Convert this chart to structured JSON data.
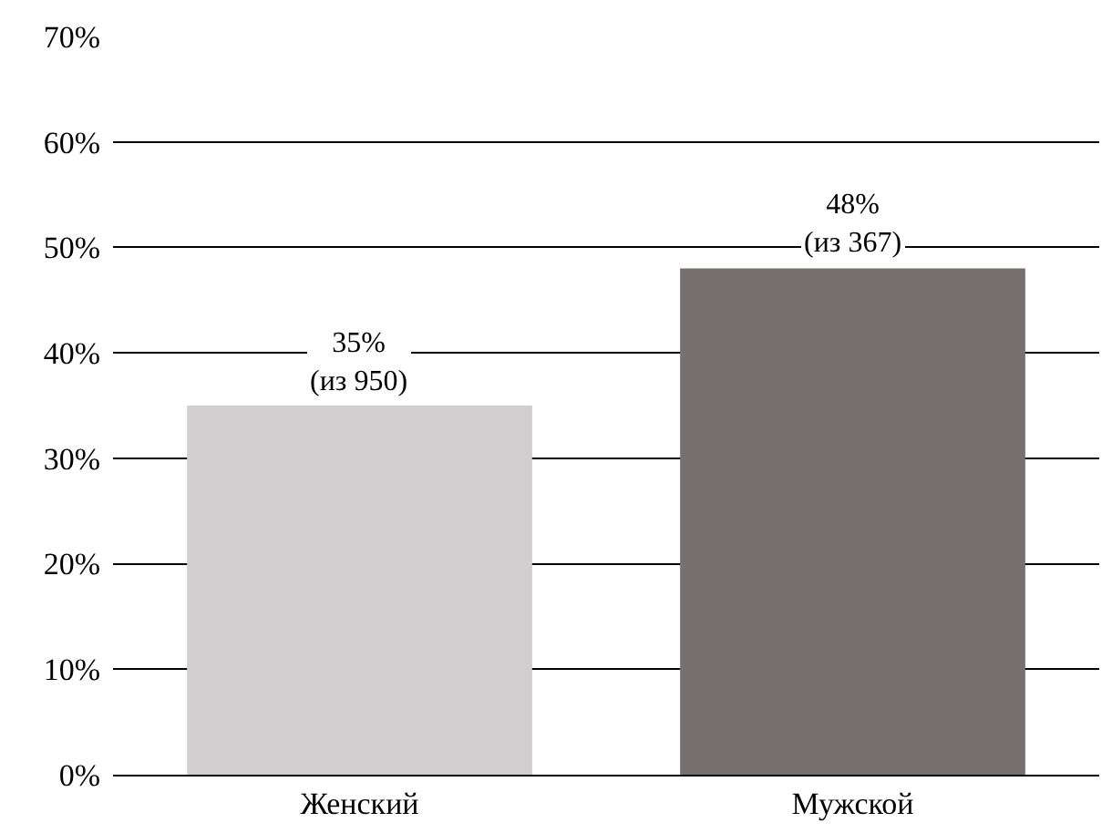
{
  "chart_data": {
    "type": "bar",
    "categories": [
      "Женский",
      "Мужской"
    ],
    "values": [
      35,
      48
    ],
    "colors": [
      "#d0cecf",
      "#767170"
    ],
    "value_labels": [
      "35%\n(из 950)",
      "48%\n(из 367)"
    ],
    "ylim": [
      0,
      70
    ],
    "yticks": [
      {
        "value": 0,
        "label": "0%"
      },
      {
        "value": 10,
        "label": "10%"
      },
      {
        "value": 20,
        "label": "20%"
      },
      {
        "value": 30,
        "label": "30%"
      },
      {
        "value": 40,
        "label": "40%"
      },
      {
        "value": 50,
        "label": "50%"
      },
      {
        "value": 60,
        "label": "60%"
      },
      {
        "value": 70,
        "label": "70%"
      }
    ],
    "grid": "y"
  }
}
